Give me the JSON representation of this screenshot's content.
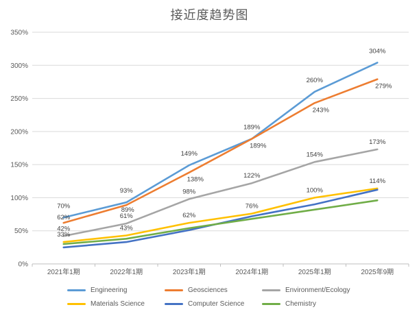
{
  "chart_data": {
    "type": "line",
    "title": "接近度趋势图",
    "categories": [
      "2021年1期",
      "2022年1期",
      "2023年1期",
      "2024年1期",
      "2025年1期",
      "2025年9期"
    ],
    "series": [
      {
        "name": "Engineering",
        "color": "#5B9BD5",
        "values": [
          70,
          93,
          149,
          189,
          260,
          304
        ],
        "data_labels": true
      },
      {
        "name": "Geosciences",
        "color": "#ED7D31",
        "values": [
          62,
          89,
          138,
          189,
          243,
          279
        ],
        "data_labels": true
      },
      {
        "name": "Environment/Ecology",
        "color": "#A5A5A5",
        "values": [
          42,
          61,
          98,
          122,
          154,
          173
        ],
        "data_labels": true
      },
      {
        "name": "Materials Science",
        "color": "#FFC000",
        "values": [
          33,
          43,
          62,
          76,
          100,
          114
        ],
        "data_labels": true
      },
      {
        "name": "Computer Science",
        "color": "#4472C4",
        "values": [
          25,
          33,
          51,
          72,
          90,
          112
        ],
        "data_labels": false
      },
      {
        "name": "Chemistry",
        "color": "#70AD47",
        "values": [
          30,
          38,
          54,
          68,
          82,
          96
        ],
        "data_labels": false
      }
    ],
    "y_axis": {
      "min": 0,
      "max": 350,
      "step": 50,
      "tick_labels": [
        "0%",
        "50%",
        "100%",
        "150%",
        "200%",
        "250%",
        "300%",
        "350%"
      ]
    },
    "value_suffix": "%",
    "grid": true,
    "legend_position": "bottom",
    "colors": {
      "grid": "#D9D9D9",
      "axis": "#BFBFBF",
      "tick_text": "#595959",
      "data_label_text": "#404040",
      "title_text": "#595959",
      "background": "#FFFFFF"
    }
  }
}
